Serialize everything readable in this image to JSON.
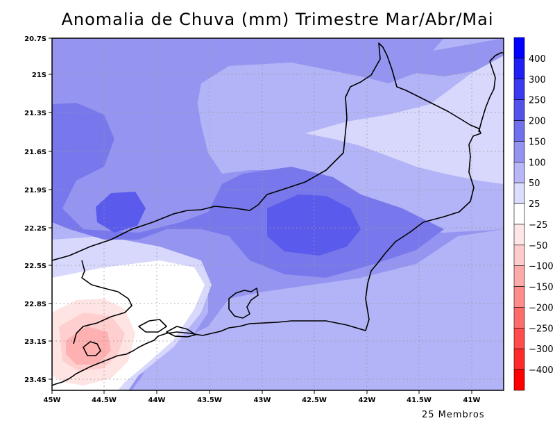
{
  "title": "Anomalia de Chuva (mm) Trimestre Mar/Abr/Mai",
  "footer": "25 Membros",
  "lat_ticks": [
    "20.7S",
    "21S",
    "21.3S",
    "21.6S",
    "21.9S",
    "22.2S",
    "22.5S",
    "22.8S",
    "23.1S",
    "23.4S"
  ],
  "lon_ticks": [
    "45W",
    "44.5W",
    "44W",
    "43.5W",
    "43W",
    "42.5W",
    "42W",
    "41.5W",
    "41W"
  ],
  "colorbar": {
    "labels": [
      "400",
      "300",
      "250",
      "200",
      "150",
      "100",
      "50",
      "25",
      "−25",
      "−50",
      "−100",
      "−150",
      "−200",
      "−250",
      "−300",
      "−400"
    ],
    "colors": [
      "#0000ff",
      "#2020f4",
      "#3a3aee",
      "#5353ea",
      "#7070ec",
      "#9494f0",
      "#b8b8f8",
      "#dcdcfc",
      "#ffffff",
      "#ffe6e6",
      "#ffcccc",
      "#ffaaaa",
      "#ff8c8c",
      "#ff6c6c",
      "#ff4c4c",
      "#ff2a2a",
      "#ff0000"
    ]
  },
  "map_colors": {
    "c_100": "#9595f1",
    "c_50": "#b3b3f7",
    "c_150": "#7878ec",
    "c_200": "#5a5aec",
    "c_25": "#d8d8fc",
    "c_neutral": "#ffffff",
    "c_neg25": "#ffe4e4",
    "c_neg50": "#ffcfcf",
    "c_neg100": "#ffb0b0"
  }
}
